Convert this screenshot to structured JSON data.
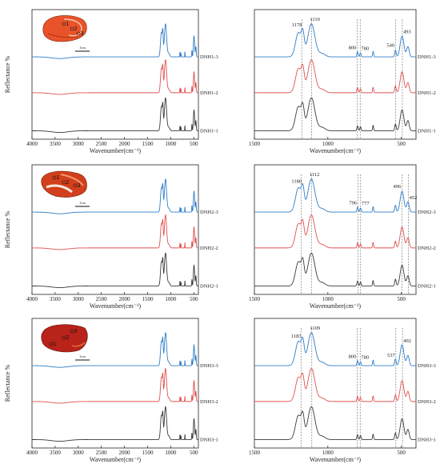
{
  "colors": {
    "blue": "#2e7dc8",
    "red": "#e05050",
    "gray": "#3a3a3a",
    "axis": "#222222",
    "guide": "#666666"
  },
  "chart_data": [
    {
      "row": 0,
      "type": "line",
      "range": "full",
      "xlabel": "Wavenumber(cm⁻¹)",
      "ylabel": "Reflectance %",
      "xlim": [
        4000,
        400
      ],
      "xticks": [
        4000,
        3500,
        3000,
        2500,
        2000,
        1500,
        1000,
        500
      ],
      "series": [
        {
          "name": "DNH1-3",
          "color": "blue"
        },
        {
          "name": "DNH1-2",
          "color": "red"
        },
        {
          "name": "DNH1-1",
          "color": "gray"
        }
      ],
      "annotations": [],
      "sample": {
        "type": "orange",
        "scale_label": "1cm",
        "spots": [
          "1",
          "2",
          "3"
        ]
      }
    },
    {
      "row": 0,
      "type": "line",
      "range": "zoom",
      "xlabel": "Wavenumber(cm⁻¹)",
      "ylabel": "",
      "xlim": [
        1500,
        400
      ],
      "xticks": [
        1500,
        1000,
        500
      ],
      "series": [
        {
          "name": "DNH1-3",
          "color": "blue"
        },
        {
          "name": "DNH1-2",
          "color": "red"
        },
        {
          "name": "DNH1-1",
          "color": "gray"
        }
      ],
      "annotations": [
        "1178",
        "1110",
        "800",
        "780",
        "540",
        "493"
      ],
      "guides": [
        1178,
        1110,
        800,
        780,
        540,
        493
      ]
    },
    {
      "row": 1,
      "type": "line",
      "range": "full",
      "xlabel": "Wavenumber(cm⁻¹)",
      "ylabel": "Reflectance %",
      "xlim": [
        4000,
        400
      ],
      "xticks": [
        4000,
        3500,
        3000,
        2500,
        2000,
        1500,
        1000,
        500
      ],
      "series": [
        {
          "name": "DNH2-3",
          "color": "blue"
        },
        {
          "name": "DNH2-2",
          "color": "red"
        },
        {
          "name": "DNH2-1",
          "color": "gray"
        }
      ],
      "annotations": [],
      "sample": {
        "type": "banded",
        "scale_label": "1cm",
        "spots": [
          "1",
          "2",
          "3"
        ]
      }
    },
    {
      "row": 1,
      "type": "line",
      "range": "zoom",
      "xlabel": "Wavenumber(cm⁻¹)",
      "ylabel": "",
      "xlim": [
        1500,
        400
      ],
      "xticks": [
        1500,
        1000,
        500
      ],
      "series": [
        {
          "name": "DNH2-3",
          "color": "blue"
        },
        {
          "name": "DNH2-2",
          "color": "red"
        },
        {
          "name": "DNH2-1",
          "color": "gray"
        }
      ],
      "annotations": [
        "1180",
        "1112",
        "796",
        "777",
        "496",
        "452"
      ],
      "guides": [
        1180,
        1112,
        796,
        777,
        496,
        452
      ]
    },
    {
      "row": 2,
      "type": "line",
      "range": "full",
      "xlabel": "Wavenumber(cm⁻¹)",
      "ylabel": "Reflectance %",
      "xlim": [
        4000,
        400
      ],
      "xticks": [
        4000,
        3500,
        3000,
        2500,
        2000,
        1500,
        1000,
        500
      ],
      "series": [
        {
          "name": "DNH3-3",
          "color": "blue"
        },
        {
          "name": "DNH3-2",
          "color": "red"
        },
        {
          "name": "DNH3-1",
          "color": "gray"
        }
      ],
      "annotations": [],
      "sample": {
        "type": "red",
        "scale_label": "1cm",
        "spots": [
          "1",
          "2",
          "3"
        ]
      }
    },
    {
      "row": 2,
      "type": "line",
      "range": "zoom",
      "xlabel": "Wavenumber(cm⁻¹)",
      "ylabel": "",
      "xlim": [
        1500,
        400
      ],
      "xticks": [
        1500,
        1000,
        500
      ],
      "series": [
        {
          "name": "DNH3-3",
          "color": "blue"
        },
        {
          "name": "DNH3-2",
          "color": "red"
        },
        {
          "name": "DNH3-1",
          "color": "gray"
        }
      ],
      "annotations": [
        "1183",
        "1109",
        "800",
        "780",
        "537",
        "492"
      ],
      "guides": [
        1183,
        1109,
        800,
        780,
        537,
        492
      ]
    }
  ]
}
